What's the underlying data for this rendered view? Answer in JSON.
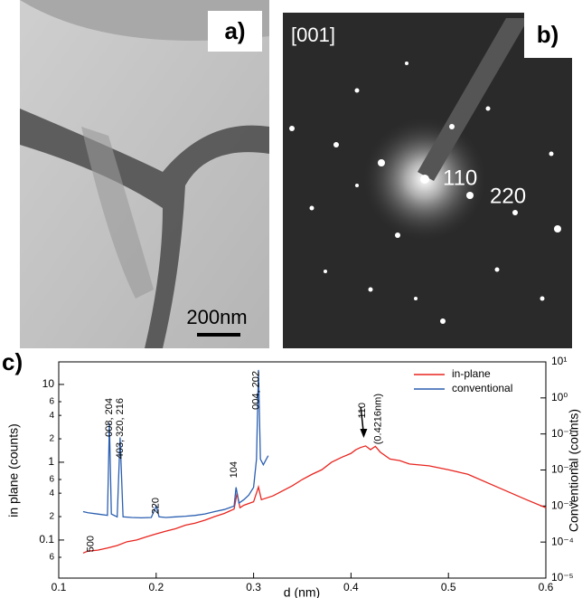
{
  "panels": {
    "a": {
      "label": "a)",
      "scale_bar": "200nm"
    },
    "b": {
      "label": "b)",
      "zone_axis": "[001]",
      "spots": [
        "110",
        "220"
      ]
    }
  },
  "chart_data": {
    "type": "line",
    "panel_label": "c)",
    "x_label": "d (nm)",
    "y_label": "in plane (counts)",
    "y2_label": "Conventional (counts)",
    "xlim": [
      0.1,
      0.6
    ],
    "xticks": [
      0.1,
      0.2,
      0.3,
      0.4,
      0.5,
      0.6
    ],
    "ylim": [
      0.0324,
      19.5
    ],
    "y_log": true,
    "yticks": [
      {
        "value": 0.06,
        "label": "6"
      },
      0.1,
      {
        "value": 0.2,
        "label": "2"
      },
      {
        "value": 0.4,
        "label": "4"
      },
      {
        "value": 0.6,
        "label": "6"
      },
      1,
      {
        "value": 2,
        "label": "2"
      },
      {
        "value": 4,
        "label": "4"
      },
      {
        "value": 6,
        "label": "6"
      },
      10
    ],
    "y2lim": [
      1e-05,
      10
    ],
    "y2_log": true,
    "y2ticks": [
      {
        "value": 1e-05,
        "label": "10⁻⁵"
      },
      {
        "value": 0.0001,
        "label": "10⁻⁴"
      },
      {
        "value": 0.001,
        "label": "10⁻³"
      },
      {
        "value": 0.01,
        "label": "10⁻²"
      },
      {
        "value": 0.1,
        "label": "10⁻¹"
      },
      {
        "value": 1,
        "label": "10⁰"
      },
      {
        "value": 10,
        "label": "10¹"
      }
    ],
    "legend": "top-right",
    "series": [
      {
        "name": "in-plane",
        "color": "#e8251f",
        "axis": "y",
        "x": [
          0.125,
          0.13,
          0.14,
          0.15,
          0.16,
          0.17,
          0.18,
          0.19,
          0.2,
          0.21,
          0.22,
          0.23,
          0.24,
          0.25,
          0.26,
          0.27,
          0.28,
          0.283,
          0.286,
          0.29,
          0.3,
          0.305,
          0.308,
          0.32,
          0.33,
          0.34,
          0.35,
          0.36,
          0.37,
          0.38,
          0.39,
          0.4,
          0.405,
          0.41,
          0.415,
          0.42,
          0.425,
          0.43,
          0.44,
          0.45,
          0.46,
          0.48,
          0.5,
          0.52,
          0.55,
          0.58,
          0.6
        ],
        "values": [
          0.068,
          0.072,
          0.074,
          0.079,
          0.085,
          0.095,
          0.1,
          0.11,
          0.12,
          0.13,
          0.14,
          0.155,
          0.165,
          0.18,
          0.2,
          0.22,
          0.25,
          0.4,
          0.26,
          0.28,
          0.31,
          0.48,
          0.33,
          0.37,
          0.43,
          0.5,
          0.6,
          0.7,
          0.8,
          1.0,
          1.15,
          1.3,
          1.45,
          1.55,
          1.62,
          1.45,
          1.6,
          1.35,
          1.1,
          1.05,
          0.95,
          0.9,
          0.8,
          0.7,
          0.48,
          0.33,
          0.26
        ]
      },
      {
        "name": "conventional",
        "color": "#2b5fb0",
        "axis": "y2",
        "x": [
          0.125,
          0.13,
          0.14,
          0.15,
          0.152,
          0.154,
          0.16,
          0.163,
          0.166,
          0.175,
          0.185,
          0.195,
          0.2,
          0.203,
          0.21,
          0.22,
          0.23,
          0.24,
          0.25,
          0.26,
          0.27,
          0.28,
          0.282,
          0.285,
          0.29,
          0.295,
          0.3,
          0.303,
          0.305,
          0.307,
          0.31,
          0.315
        ],
        "values": [
          0.0007,
          0.00065,
          0.0006,
          0.00055,
          0.2,
          0.0006,
          0.0005,
          0.08,
          0.0005,
          0.00048,
          0.00047,
          0.00048,
          0.001,
          0.0005,
          0.00048,
          0.0005,
          0.00052,
          0.00055,
          0.0006,
          0.0007,
          0.0008,
          0.001,
          0.0033,
          0.0012,
          0.0015,
          0.002,
          0.0033,
          0.02,
          6,
          0.02,
          0.014,
          0.025
        ]
      }
    ],
    "annotations": [
      "500",
      "008, 204",
      "403, 320, 216",
      "220",
      "104",
      "004, 202",
      "110",
      "(0.4216nm)"
    ]
  }
}
